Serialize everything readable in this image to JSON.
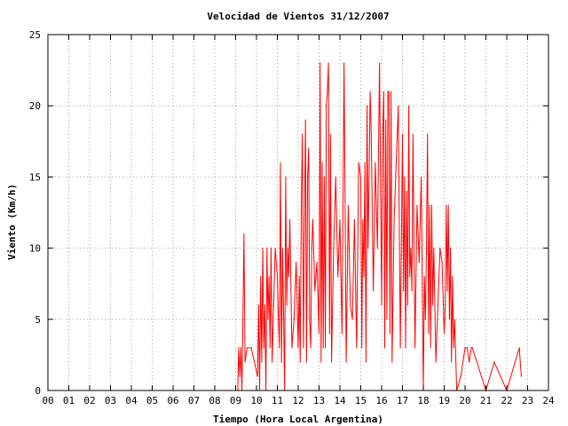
{
  "chart_data": {
    "type": "line",
    "title": "Velocidad de Vientos 31/12/2007",
    "xlabel": "Tiempo (Hora Local Argentina)",
    "ylabel": "Viento (Km/h)",
    "xlim": [
      0,
      24
    ],
    "ylim": [
      0,
      25
    ],
    "x_ticks": [
      "00",
      "01",
      "02",
      "03",
      "04",
      "05",
      "06",
      "07",
      "08",
      "09",
      "10",
      "11",
      "12",
      "13",
      "14",
      "15",
      "16",
      "17",
      "18",
      "19",
      "20",
      "21",
      "22",
      "23",
      "24"
    ],
    "y_ticks": [
      0,
      5,
      10,
      15,
      20,
      25
    ],
    "grid": true,
    "legend": "none",
    "line_color": "#ff0000",
    "series": [
      {
        "x": [
          9.1,
          9.15,
          9.2,
          9.25,
          9.3,
          9.35,
          9.4,
          9.45,
          9.55,
          9.75,
          9.9,
          10.05,
          10.1,
          10.15,
          10.2,
          10.25,
          10.3,
          10.35,
          10.4,
          10.45,
          10.5,
          10.55,
          10.6,
          10.65,
          10.7,
          10.75,
          10.9,
          11.0,
          11.05,
          11.1,
          11.15,
          11.2,
          11.25,
          11.3,
          11.35,
          11.4,
          11.45,
          11.5,
          11.55,
          11.6,
          11.7,
          11.8,
          11.9,
          12.0,
          12.05,
          12.1,
          12.15,
          12.2,
          12.25,
          12.3,
          12.35,
          12.4,
          12.45,
          12.5,
          12.55,
          12.6,
          12.65,
          12.7,
          12.8,
          12.9,
          13.0,
          13.05,
          13.1,
          13.15,
          13.2,
          13.25,
          13.3,
          13.35,
          13.4,
          13.45,
          13.5,
          13.55,
          13.6,
          13.7,
          13.8,
          13.9,
          14.0,
          14.1,
          14.2,
          14.3,
          14.4,
          14.5,
          14.6,
          14.7,
          14.8,
          14.9,
          15.0,
          15.05,
          15.1,
          15.15,
          15.2,
          15.25,
          15.3,
          15.35,
          15.4,
          15.45,
          15.5,
          15.6,
          15.7,
          15.8,
          15.9,
          16.0,
          16.05,
          16.1,
          16.15,
          16.2,
          16.25,
          16.3,
          16.35,
          16.4,
          16.45,
          16.5,
          16.6,
          16.7,
          16.8,
          16.9,
          17.0,
          17.05,
          17.1,
          17.15,
          17.2,
          17.25,
          17.3,
          17.35,
          17.4,
          17.45,
          17.5,
          17.6,
          17.7,
          17.8,
          17.9,
          18.0,
          18.05,
          18.1,
          18.15,
          18.2,
          18.25,
          18.3,
          18.35,
          18.4,
          18.45,
          18.5,
          18.6,
          18.7,
          18.8,
          18.9,
          19.0,
          19.05,
          19.1,
          19.15,
          19.2,
          19.25,
          19.3,
          19.35,
          19.4,
          19.45,
          19.5,
          19.6,
          19.8,
          19.9,
          20.0,
          20.1,
          20.2,
          20.3,
          20.35,
          21.0,
          21.4,
          22.0,
          22.6,
          22.7
        ],
        "y": [
          0,
          3,
          1,
          3,
          0,
          5,
          11,
          2,
          3,
          3,
          2,
          1,
          6,
          0,
          8,
          2,
          10,
          3,
          6,
          0,
          10,
          5,
          8,
          3,
          10,
          2,
          10,
          8,
          5,
          3,
          16,
          2,
          10,
          5,
          0,
          15,
          6,
          10,
          8,
          12,
          3,
          5,
          9,
          3,
          8,
          2,
          13,
          18,
          3,
          12,
          19,
          2,
          15,
          17,
          5,
          3,
          10,
          12,
          7,
          9,
          4,
          23,
          2,
          16,
          3,
          15,
          3,
          20,
          21,
          23,
          4,
          18,
          2,
          10,
          15,
          8,
          12,
          4,
          23,
          2,
          13,
          6,
          5,
          12,
          3,
          16,
          15,
          3,
          12,
          8,
          16,
          2,
          20,
          10,
          15,
          21,
          18,
          7,
          16,
          10,
          23,
          6,
          18,
          21,
          3,
          19,
          5,
          21,
          21,
          4,
          21,
          2,
          12,
          16,
          20,
          3,
          18,
          7,
          15,
          3,
          14,
          6,
          20,
          8,
          10,
          7,
          18,
          3,
          13,
          9,
          15,
          0,
          8,
          5,
          10,
          18,
          4,
          13,
          3,
          13,
          6,
          10,
          2,
          6,
          10,
          9,
          4,
          6,
          13,
          7,
          13,
          5,
          10,
          2,
          8,
          3,
          5,
          0,
          1,
          2,
          3,
          3,
          2,
          3,
          3,
          0,
          2,
          0,
          3,
          1
        ]
      }
    ]
  }
}
